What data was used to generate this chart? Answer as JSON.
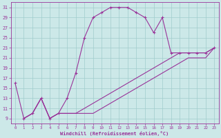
{
  "xlabel": "Windchill (Refroidissement éolien,°C)",
  "xlim": [
    -0.5,
    23.5
  ],
  "ylim": [
    8.0,
    32.0
  ],
  "xticks": [
    0,
    1,
    2,
    3,
    4,
    5,
    6,
    7,
    8,
    9,
    10,
    11,
    12,
    13,
    14,
    15,
    16,
    17,
    18,
    19,
    20,
    21,
    22,
    23
  ],
  "yticks": [
    9,
    11,
    13,
    15,
    17,
    19,
    21,
    23,
    25,
    27,
    29,
    31
  ],
  "bg_color": "#cce8e8",
  "grid_color": "#a0cccc",
  "line_color": "#993399",
  "curve1_x": [
    0,
    1,
    2,
    3,
    4,
    5,
    6,
    7,
    8,
    9,
    10,
    11,
    12,
    13,
    14,
    15,
    16,
    17,
    18,
    19,
    20,
    21,
    22,
    23
  ],
  "curve1_y": [
    16,
    9,
    10,
    13,
    9,
    10,
    13,
    18,
    25,
    29,
    30,
    31,
    31,
    31,
    30,
    29,
    26,
    29,
    22,
    22,
    22,
    22,
    22,
    23
  ],
  "curve2_x": [
    1,
    2,
    3,
    4,
    5,
    6,
    7,
    8,
    9,
    10,
    11,
    12,
    13,
    14,
    15,
    16,
    17,
    18,
    19,
    20,
    21,
    22,
    23
  ],
  "curve2_y": [
    9,
    10,
    13,
    9,
    10,
    10,
    10,
    10,
    10,
    11,
    12,
    13,
    14,
    15,
    16,
    17,
    18,
    19,
    20,
    21,
    21,
    21,
    23
  ],
  "curve3_x": [
    1,
    2,
    3,
    4,
    5,
    6,
    7,
    8,
    9,
    10,
    11,
    12,
    13,
    14,
    15,
    16,
    17,
    18,
    19,
    20,
    21,
    22,
    23
  ],
  "curve3_y": [
    9,
    10,
    13,
    9,
    10,
    10,
    10,
    11,
    12,
    13,
    14,
    15,
    16,
    17,
    18,
    19,
    20,
    21,
    22,
    22,
    22,
    22,
    23
  ]
}
